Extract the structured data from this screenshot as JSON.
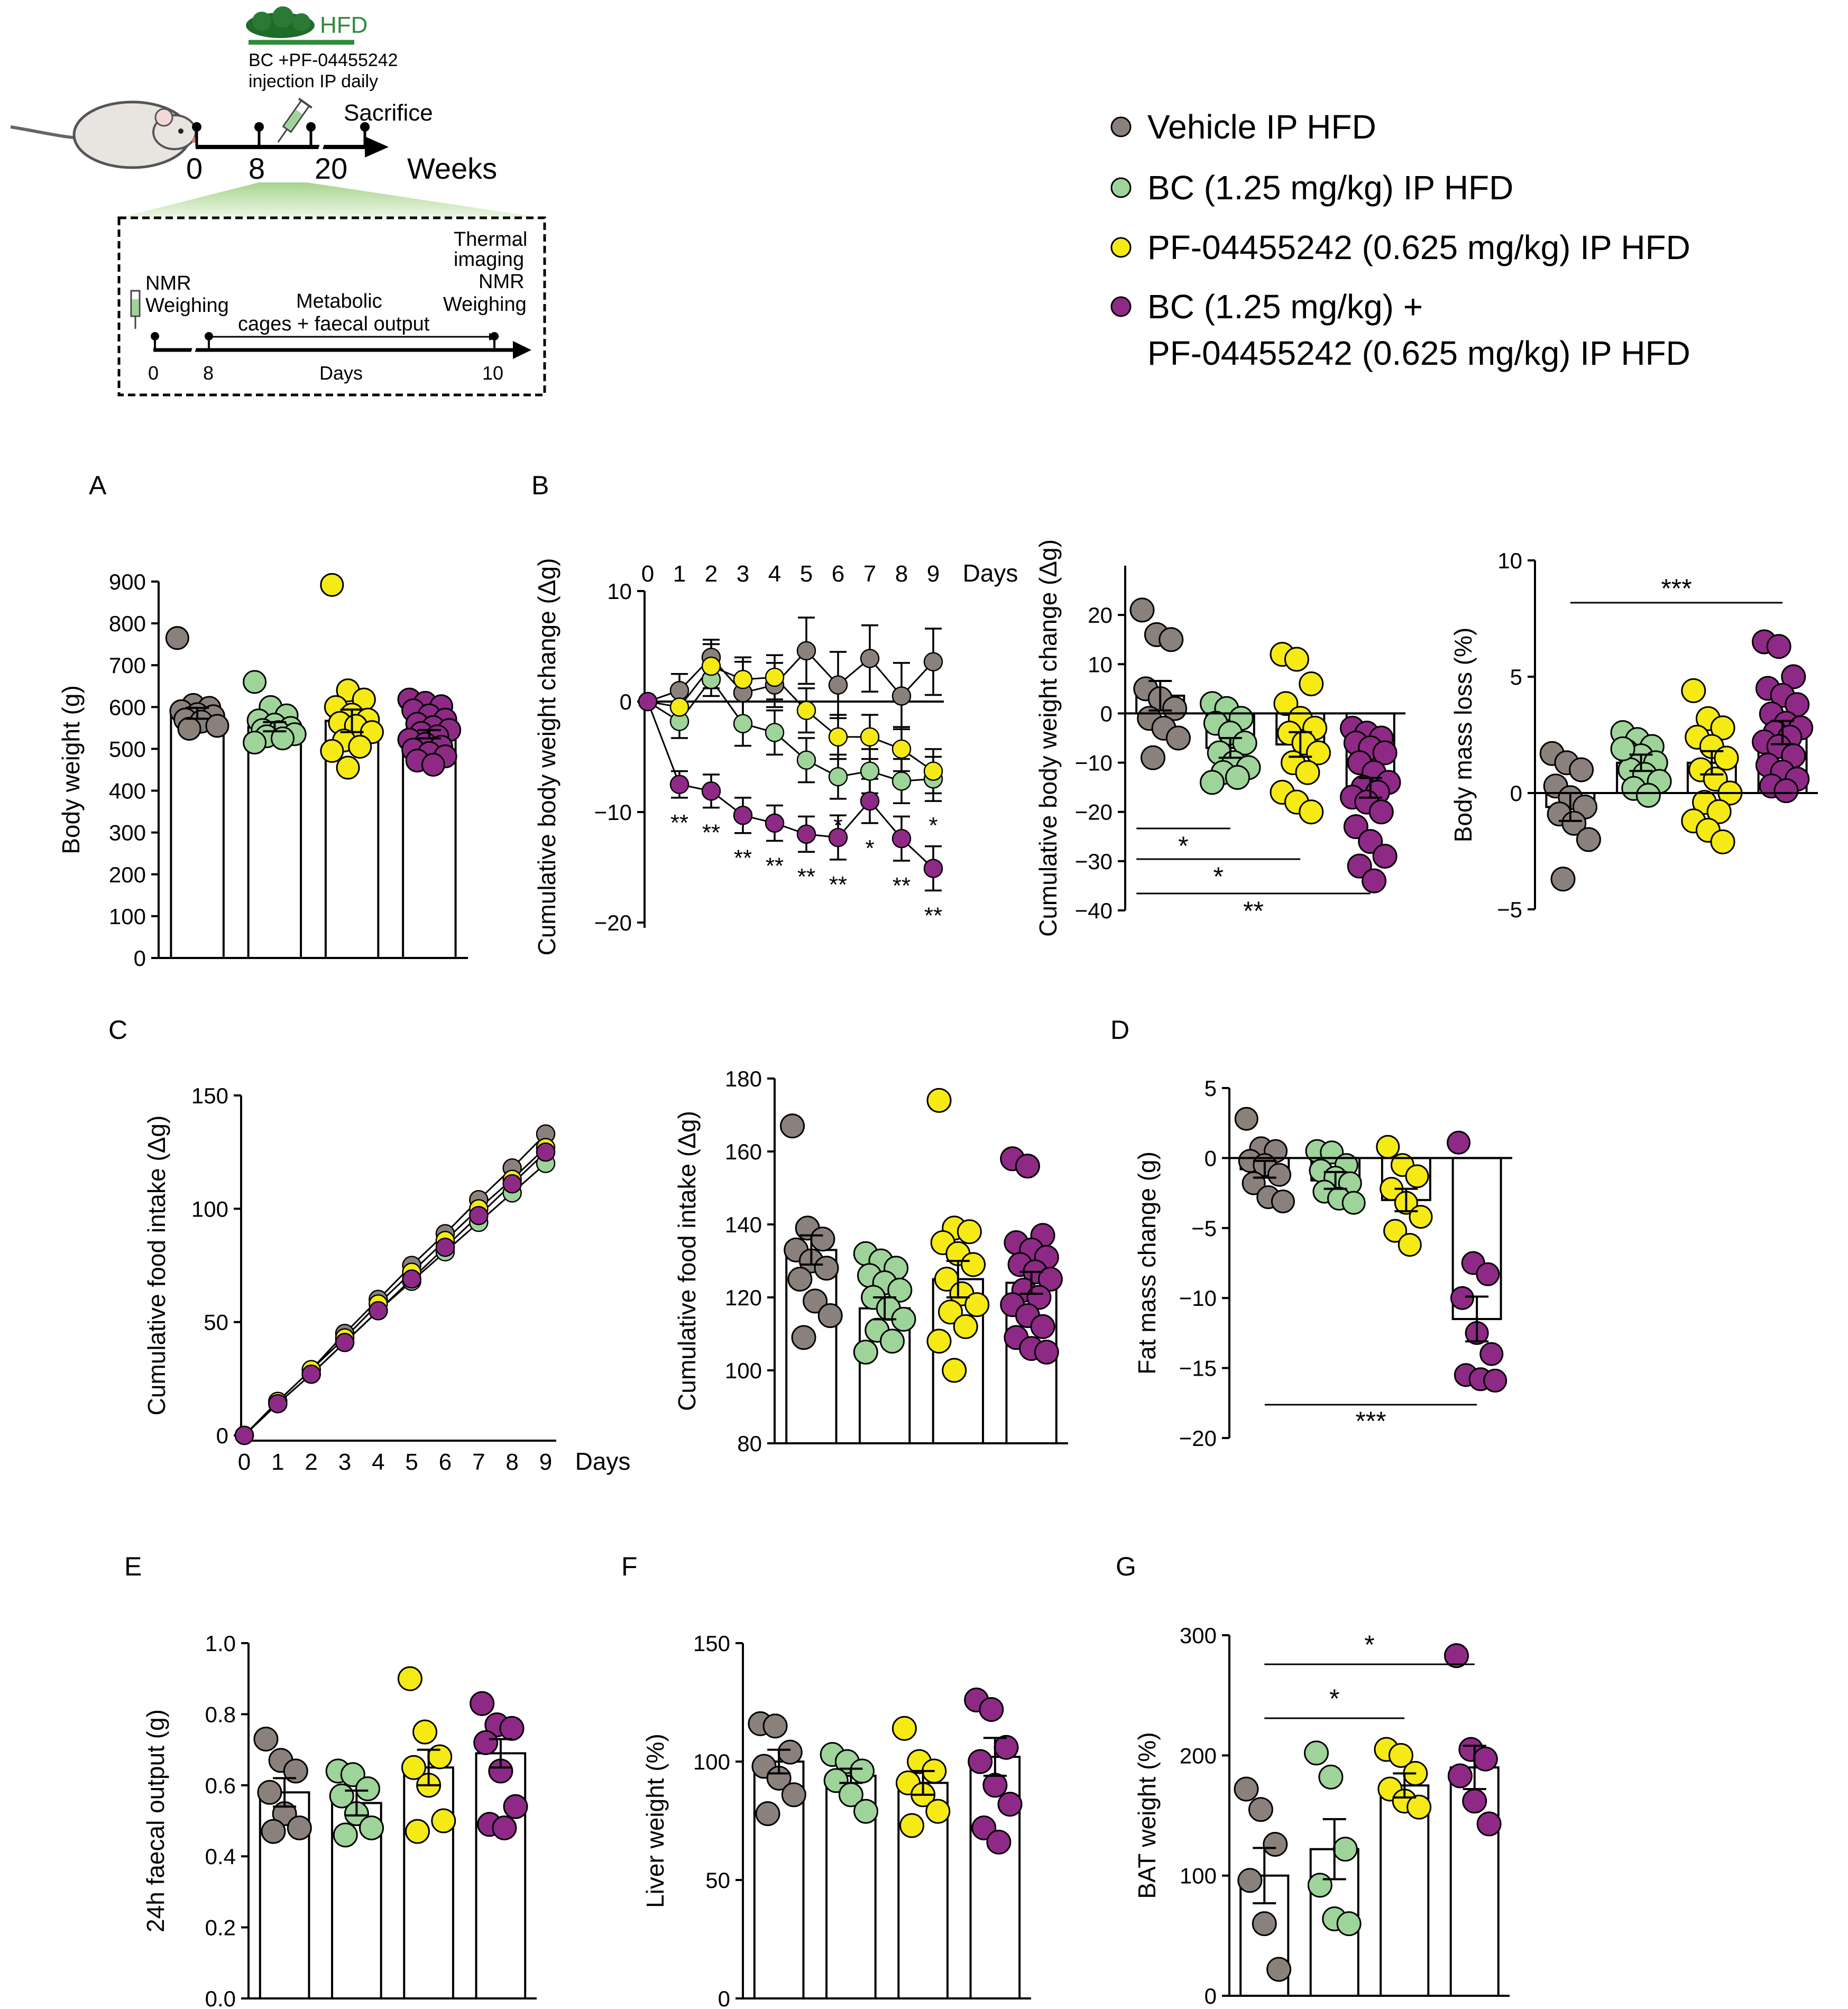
{
  "colors": {
    "vehicle": "#8a817c",
    "bc": "#9ed49a",
    "pf": "#f5ea14",
    "combo": "#8e2a86",
    "hfd": "#2e8b3a",
    "green_gradient": "#bfe0a8"
  },
  "schematic": {
    "hfd_label": "HFD",
    "treatment_line1": "BC +PF-04455242",
    "treatment_line2": "injection IP daily",
    "sacrifice_label": "Sacrifice",
    "timeline_ticks": [
      "0",
      "8",
      "20"
    ],
    "timeline_unit": "Weeks",
    "icon_mouse": "mouse-icon",
    "icon_syringe": "syringe-icon",
    "inset": {
      "nmr_weighing_1": "NMR",
      "nmr_weighing_2": "Weighing",
      "metabolic_1": "Metabolic",
      "metabolic_2": "cages + faecal output",
      "thermal_1": "Thermal",
      "thermal_2": "imaging",
      "nmr_2": "NMR",
      "weighing_3": "Weighing",
      "ticks": [
        "0",
        "8",
        "10"
      ],
      "unit": "Days"
    }
  },
  "legend": [
    {
      "label": "Vehicle  IP HFD",
      "color_key": "vehicle"
    },
    {
      "label": "BC (1.25 mg/kg) IP HFD",
      "color_key": "bc"
    },
    {
      "label": "PF-04455242 (0.625 mg/kg) IP HFD",
      "color_key": "pf"
    },
    {
      "label": "BC (1.25 mg/kg) +",
      "label2": "PF-04455242 (0.625 mg/kg) IP HFD",
      "color_key": "combo"
    }
  ],
  "panel_letters": {
    "A": "A",
    "B": "B",
    "C": "C",
    "D": "D",
    "E": "E",
    "F": "F",
    "G": "G"
  },
  "chart_data": [
    {
      "id": "A_body_weight",
      "type": "bar",
      "ylabel": "Body weight (g)",
      "ylim": [
        0,
        900
      ],
      "yticks": [
        0,
        100,
        200,
        300,
        400,
        500,
        600,
        700,
        800,
        900
      ],
      "groups": [
        "vehicle",
        "bc",
        "pf",
        "combo"
      ],
      "means": [
        585,
        553,
        567,
        535
      ],
      "sem": [
        13,
        11,
        27,
        10
      ],
      "points": [
        [
          765,
          605,
          598,
          590,
          583,
          578,
          570,
          565,
          555,
          548
        ],
        [
          660,
          600,
          580,
          568,
          558,
          550,
          545,
          540,
          535,
          530,
          525,
          515
        ],
        [
          892,
          640,
          618,
          600,
          582,
          570,
          562,
          555,
          540,
          520,
          505,
          495,
          455
        ],
        [
          618,
          610,
          602,
          592,
          580,
          570,
          560,
          552,
          545,
          538,
          530,
          522,
          512,
          505,
          498,
          490,
          482,
          472,
          462
        ]
      ]
    },
    {
      "id": "B_time_course",
      "type": "line",
      "ylabel": "Cumulative body weight change (Δg)",
      "xlabel": "Days",
      "x": [
        0,
        1,
        2,
        3,
        4,
        5,
        6,
        7,
        8,
        9
      ],
      "ylim": [
        -20,
        10
      ],
      "yticks": [
        -20,
        -10,
        0,
        10
      ],
      "series": [
        {
          "name": "vehicle",
          "values": [
            0,
            1.0,
            4.0,
            0.8,
            1.5,
            4.6,
            1.5,
            3.9,
            0.5,
            3.6
          ],
          "sem": [
            0,
            1.5,
            1.6,
            2.8,
            2.0,
            3.0,
            3.0,
            3.0,
            3.0,
            3.0
          ]
        },
        {
          "name": "bc",
          "values": [
            0,
            -1.8,
            2.0,
            -2.0,
            -2.8,
            -5.3,
            -6.8,
            -6.3,
            -7.2,
            -7.0
          ],
          "sem": [
            0,
            1.5,
            1.5,
            2.0,
            2.0,
            2.0,
            2.0,
            2.0,
            2.0,
            2.0
          ]
        },
        {
          "name": "pf",
          "values": [
            0,
            -0.5,
            3.2,
            2.0,
            2.2,
            -0.8,
            -3.2,
            -3.2,
            -4.3,
            -6.3
          ],
          "sem": [
            0,
            1.5,
            2.0,
            2.0,
            2.0,
            2.0,
            2.0,
            2.0,
            2.0,
            2.0
          ]
        },
        {
          "name": "combo",
          "values": [
            0,
            -7.5,
            -8.1,
            -10.3,
            -11.0,
            -12.0,
            -12.3,
            -9.0,
            -12.4,
            -15.1
          ],
          "sem": [
            0,
            1.2,
            1.5,
            1.6,
            1.6,
            1.6,
            2.0,
            2.0,
            2.0,
            2.0
          ]
        }
      ],
      "annotations": {
        "bc_row": [
          "",
          "",
          "",
          "",
          "",
          "",
          "*",
          "",
          "",
          "*"
        ],
        "combo_row": [
          "",
          "**",
          "**",
          "**",
          "**",
          "**",
          "**",
          "*",
          "**",
          "**"
        ]
      }
    },
    {
      "id": "B_cumulative",
      "type": "bar",
      "ylabel": "Cumulative body weight change (Δg)",
      "ylim": [
        -40,
        30
      ],
      "yticks": [
        -40,
        -30,
        -20,
        -10,
        0,
        10,
        20
      ],
      "groups": [
        "vehicle",
        "bc",
        "pf",
        "combo"
      ],
      "means": [
        3.6,
        -7.0,
        -6.3,
        -15.1
      ],
      "sem": [
        3.0,
        2.0,
        2.5,
        2.0
      ],
      "points": [
        [
          21,
          16,
          15,
          5,
          3,
          1,
          -1,
          -3,
          -5,
          -9
        ],
        [
          2,
          1,
          -1,
          -2,
          -4,
          -6,
          -8,
          -10,
          -11,
          -12,
          -13,
          -14
        ],
        [
          12,
          11,
          6,
          2,
          -1,
          -3,
          -4,
          -6,
          -8,
          -10,
          -12,
          -16,
          -18,
          -20
        ],
        [
          -3,
          -4,
          -5,
          -6,
          -7,
          -8,
          -10,
          -12,
          -14,
          -15,
          -16,
          -17,
          -18,
          -20,
          -23,
          -26,
          -29,
          -31,
          -34
        ]
      ],
      "significance": [
        {
          "text": "*",
          "from": 0,
          "to": 1
        },
        {
          "text": "*",
          "from": 0,
          "to": 2
        },
        {
          "text": "**",
          "from": 0,
          "to": 3
        }
      ]
    },
    {
      "id": "B_mass_loss",
      "type": "bar",
      "ylabel": "Body mass loss (%)",
      "ylim": [
        -5,
        10
      ],
      "yticks": [
        -5,
        0,
        5,
        10
      ],
      "groups": [
        "vehicle",
        "bc",
        "pf",
        "combo"
      ],
      "means": [
        -0.6,
        1.3,
        1.3,
        2.6
      ],
      "sem": [
        0.6,
        0.35,
        0.5,
        0.5
      ],
      "points": [
        [
          1.7,
          1.3,
          1.0,
          0.3,
          -0.2,
          -0.6,
          -0.9,
          -1.3,
          -2.0,
          -3.7
        ],
        [
          2.6,
          2.3,
          2.0,
          1.8,
          1.6,
          1.3,
          1.0,
          0.8,
          0.5,
          0.2,
          -0.1,
          1.9
        ],
        [
          4.4,
          3.2,
          2.8,
          2.4,
          2.0,
          1.5,
          1.0,
          0.6,
          0.0,
          -0.4,
          -0.8,
          -1.2,
          -1.6,
          -2.1
        ],
        [
          6.5,
          6.3,
          5.0,
          4.5,
          4.2,
          3.8,
          3.4,
          3.0,
          2.8,
          2.6,
          2.4,
          2.2,
          2.0,
          1.6,
          1.2,
          0.9,
          0.6,
          0.3,
          0.1
        ]
      ],
      "significance": [
        {
          "text": "***",
          "from": 0,
          "to": 3
        }
      ]
    },
    {
      "id": "C_time_course",
      "type": "line",
      "ylabel": "Cumulative food intake (Δg)",
      "xlabel": "Days",
      "x": [
        0,
        1,
        2,
        3,
        4,
        5,
        6,
        7,
        8,
        9
      ],
      "ylim": [
        0,
        150
      ],
      "yticks": [
        0,
        50,
        100,
        150
      ],
      "series": [
        {
          "name": "vehicle",
          "values": [
            0,
            15,
            29,
            45,
            60,
            75,
            89,
            104,
            118,
            133
          ]
        },
        {
          "name": "bc",
          "values": [
            0,
            14,
            27,
            41,
            55,
            68,
            81,
            94,
            107,
            120
          ]
        },
        {
          "name": "pf",
          "values": [
            0,
            15,
            29,
            43,
            58,
            72,
            86,
            100,
            113,
            127
          ]
        },
        {
          "name": "combo",
          "values": [
            0,
            14,
            27,
            41,
            55,
            69,
            83,
            97,
            111,
            125
          ]
        }
      ]
    },
    {
      "id": "C_cumulative",
      "type": "bar",
      "ylabel": "Cumulative food intake (Δg)",
      "ylim": [
        80,
        180
      ],
      "yticks": [
        80,
        100,
        120,
        140,
        160,
        180
      ],
      "groups": [
        "vehicle",
        "bc",
        "pf",
        "combo"
      ],
      "means": [
        133,
        117,
        125,
        124
      ],
      "sem": [
        4,
        3,
        5,
        3
      ],
      "points": [
        [
          167,
          139,
          136,
          133,
          130,
          128,
          125,
          119,
          115,
          109
        ],
        [
          132,
          130,
          128,
          126,
          124,
          122,
          120,
          117,
          114,
          111,
          108,
          105
        ],
        [
          174,
          139,
          138,
          135,
          132,
          129,
          125,
          121,
          118,
          116,
          112,
          108,
          100
        ],
        [
          158,
          156,
          137,
          135,
          133,
          131,
          129,
          127,
          125,
          122,
          120,
          118,
          115,
          112,
          109,
          106,
          105
        ]
      ]
    },
    {
      "id": "D_fat_mass",
      "type": "bar",
      "ylabel": "Fat mass change (g)",
      "ylim": [
        -20,
        5
      ],
      "yticks": [
        -20,
        -15,
        -10,
        -5,
        0,
        5
      ],
      "groups": [
        "vehicle",
        "bc",
        "pf",
        "combo"
      ],
      "means": [
        -0.8,
        -1.6,
        -3.0,
        -11.5
      ],
      "sem": [
        0.6,
        0.6,
        0.8,
        1.6
      ],
      "points": [
        [
          2.8,
          0.7,
          0.5,
          -0.2,
          -0.5,
          -1.2,
          -1.8,
          -2.8,
          -3.1
        ],
        [
          0.5,
          0.4,
          -0.5,
          -0.9,
          -1.4,
          -1.8,
          -2.4,
          -2.9,
          -3.2
        ],
        [
          0.8,
          -0.5,
          -1.3,
          -2.2,
          -3.2,
          -4.2,
          -5.2,
          -6.2
        ],
        [
          1.1,
          -7.5,
          -8.3,
          -10.0,
          -12.5,
          -14.0,
          -15.5,
          -15.8,
          -15.9
        ]
      ],
      "significance": [
        {
          "text": "***",
          "from": 0,
          "to": 3
        }
      ]
    },
    {
      "id": "E_faecal",
      "type": "bar",
      "ylabel": "24h faecal output (g)",
      "ylim": [
        0,
        1.0
      ],
      "yticks": [
        0.0,
        0.2,
        0.4,
        0.6,
        0.8,
        1.0
      ],
      "groups": [
        "vehicle",
        "bc",
        "pf",
        "combo"
      ],
      "means": [
        0.58,
        0.55,
        0.65,
        0.69
      ],
      "sem": [
        0.04,
        0.035,
        0.05,
        0.04
      ],
      "points": [
        [
          0.73,
          0.67,
          0.64,
          0.58,
          0.52,
          0.48,
          0.47
        ],
        [
          0.64,
          0.63,
          0.59,
          0.57,
          0.52,
          0.48,
          0.46
        ],
        [
          0.9,
          0.75,
          0.68,
          0.65,
          0.6,
          0.5,
          0.47
        ],
        [
          0.83,
          0.77,
          0.76,
          0.72,
          0.64,
          0.54,
          0.49,
          0.48
        ]
      ]
    },
    {
      "id": "F_liver",
      "type": "bar",
      "ylabel": "Liver weight (%)",
      "ylim": [
        0,
        150
      ],
      "yticks": [
        0,
        50,
        100,
        150
      ],
      "groups": [
        "vehicle",
        "bc",
        "pf",
        "combo"
      ],
      "means": [
        100,
        94,
        91,
        102
      ],
      "sem": [
        5,
        3,
        5,
        8
      ],
      "points": [
        [
          116,
          115,
          104,
          98,
          93,
          86,
          78
        ],
        [
          103,
          100,
          96,
          92,
          86,
          79
        ],
        [
          114,
          100,
          96,
          91,
          86,
          79,
          73
        ],
        [
          126,
          122,
          106,
          100,
          90,
          82,
          72,
          66
        ]
      ]
    },
    {
      "id": "G_bat",
      "type": "bar",
      "ylabel": "BAT weight (%)",
      "ylim": [
        0,
        300
      ],
      "yticks": [
        0,
        100,
        200,
        300
      ],
      "groups": [
        "vehicle",
        "bc",
        "pf",
        "combo"
      ],
      "means": [
        100,
        122,
        175,
        190
      ],
      "sem": [
        23,
        25,
        10,
        18
      ],
      "points": [
        [
          172,
          155,
          126,
          96,
          60,
          22
        ],
        [
          202,
          182,
          122,
          92,
          64,
          60
        ],
        [
          205,
          200,
          185,
          172,
          162,
          157
        ],
        [
          283,
          205,
          197,
          183,
          162,
          143
        ]
      ],
      "significance": [
        {
          "text": "*",
          "from": 0,
          "to": 3
        },
        {
          "text": "*",
          "from": 0,
          "to": 2
        }
      ]
    }
  ]
}
